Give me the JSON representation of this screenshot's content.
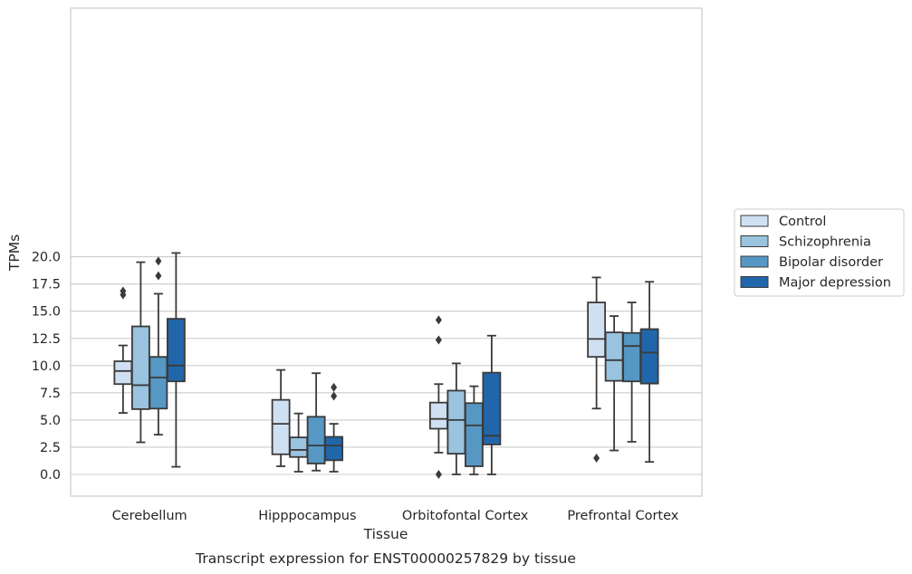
{
  "chart_data": {
    "type": "box",
    "title": "",
    "caption": "Transcript expression for ENST00000257829 by tissue",
    "xlabel": "Tissue",
    "ylabel": "TPMs",
    "ylim": [
      -1.0,
      21.4
    ],
    "yticks": [
      "0.0",
      "2.5",
      "5.0",
      "7.5",
      "10.0",
      "12.5",
      "15.0",
      "17.5",
      "20.0"
    ],
    "categories": [
      "Cerebellum",
      "Hipppocampus",
      "Orbitofontal Cortex",
      "Prefrontal Cortex"
    ],
    "grid": "horizontal",
    "legend_position": "right",
    "series": [
      {
        "name": "Control",
        "color": "#d0e0f3",
        "boxes": [
          {
            "whislo": 5.65,
            "q1": 8.3,
            "med": 9.5,
            "q3": 10.4,
            "whishi": 11.85,
            "fliers": [
              16.5,
              16.85
            ]
          },
          {
            "whislo": 0.75,
            "q1": 1.85,
            "med": 4.65,
            "q3": 6.85,
            "whishi": 9.6,
            "fliers": []
          },
          {
            "whislo": 2.0,
            "q1": 4.2,
            "med": 5.1,
            "q3": 6.6,
            "whishi": 8.3,
            "fliers": [
              0.0,
              12.35,
              14.2
            ]
          },
          {
            "whislo": 6.05,
            "q1": 10.8,
            "med": 12.45,
            "q3": 15.8,
            "whishi": 18.1,
            "fliers": [
              1.5
            ]
          }
        ]
      },
      {
        "name": "Schizophrenia",
        "color": "#99c3de",
        "boxes": [
          {
            "whislo": 2.95,
            "q1": 6.0,
            "med": 8.2,
            "q3": 13.6,
            "whishi": 19.5,
            "fliers": []
          },
          {
            "whislo": 0.25,
            "q1": 1.6,
            "med": 2.25,
            "q3": 3.4,
            "whishi": 5.6,
            "fliers": []
          },
          {
            "whislo": 0.0,
            "q1": 1.9,
            "med": 5.0,
            "q3": 7.7,
            "whishi": 10.2,
            "fliers": []
          },
          {
            "whislo": 2.2,
            "q1": 8.6,
            "med": 10.5,
            "q3": 13.05,
            "whishi": 14.55,
            "fliers": []
          }
        ]
      },
      {
        "name": "Bipolar disorder",
        "color": "#5697c4",
        "boxes": [
          {
            "whislo": 3.65,
            "q1": 6.05,
            "med": 8.9,
            "q3": 10.8,
            "whishi": 16.6,
            "fliers": [
              18.25,
              19.6
            ]
          },
          {
            "whislo": 0.35,
            "q1": 1.0,
            "med": 2.65,
            "q3": 5.3,
            "whishi": 9.3,
            "fliers": []
          },
          {
            "whislo": 0.0,
            "q1": 0.75,
            "med": 4.5,
            "q3": 6.55,
            "whishi": 8.1,
            "fliers": []
          },
          {
            "whislo": 3.0,
            "q1": 8.55,
            "med": 11.8,
            "q3": 13.0,
            "whishi": 15.8,
            "fliers": []
          }
        ]
      },
      {
        "name": "Major depression",
        "color": "#2166ab",
        "boxes": [
          {
            "whislo": 0.7,
            "q1": 8.55,
            "med": 10.0,
            "q3": 14.3,
            "whishi": 20.35,
            "fliers": []
          },
          {
            "whislo": 0.25,
            "q1": 1.3,
            "med": 2.65,
            "q3": 3.45,
            "whishi": 4.65,
            "fliers": [
              7.2,
              8.0
            ]
          },
          {
            "whislo": 0.0,
            "q1": 2.75,
            "med": 3.55,
            "q3": 9.35,
            "whishi": 12.75,
            "fliers": []
          },
          {
            "whislo": 1.15,
            "q1": 8.35,
            "med": 11.2,
            "q3": 13.35,
            "whishi": 17.7,
            "fliers": []
          }
        ]
      }
    ]
  }
}
